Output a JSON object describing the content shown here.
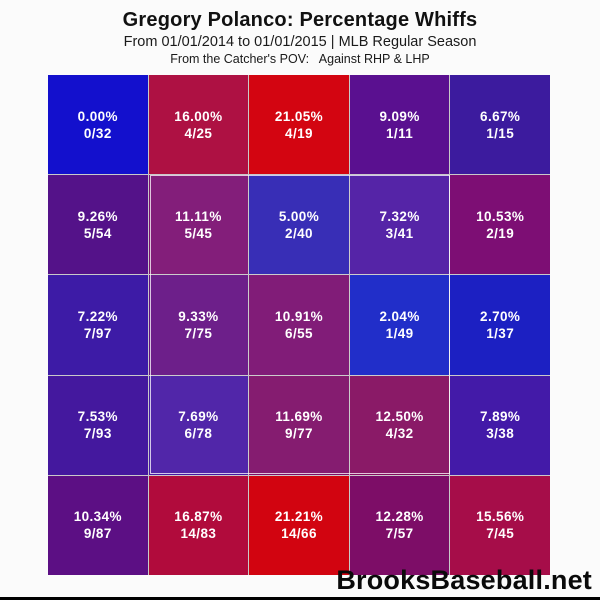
{
  "header": {
    "title": "Gregory Polanco: Percentage Whiffs",
    "subtitle": "From 01/01/2014 to 01/01/2015 | MLB Regular Season",
    "pov_line": "From the Catcher's POV:   Against RHP & LHP"
  },
  "footer": {
    "brand": "BrooksBaseball.net"
  },
  "chart_data": {
    "type": "heatmap",
    "title": "Gregory Polanco: Percentage Whiffs",
    "subtitle": "From 01/01/2014 to 01/01/2015 | MLB Regular Season",
    "pov": "From the Catcher's POV: Against RHP & LHP",
    "metric": "Percentage Whiffs (whiffs/swings)",
    "rows": 5,
    "cols": 5,
    "color_scale": {
      "low": "#1411cb",
      "mid": "#6e107c",
      "high": "#d30511",
      "meaning": "blue = low whiff %, red = high whiff %"
    },
    "strike_zone": {
      "row_start": 2,
      "row_end": 4,
      "col_start": 2,
      "col_end": 4,
      "outline_color": "#ffffff"
    },
    "cells": [
      [
        {
          "pct": "0.00%",
          "frac": "0/32",
          "value": 0.0,
          "whiffs": 0,
          "swings": 32,
          "color": "#1310cd"
        },
        {
          "pct": "16.00%",
          "frac": "4/25",
          "value": 16.0,
          "whiffs": 4,
          "swings": 25,
          "color": "#ae1143"
        },
        {
          "pct": "21.05%",
          "frac": "4/19",
          "value": 21.05,
          "whiffs": 4,
          "swings": 19,
          "color": "#d30511"
        },
        {
          "pct": "9.09%",
          "frac": "1/11",
          "value": 9.09,
          "whiffs": 1,
          "swings": 11,
          "color": "#5a1090"
        },
        {
          "pct": "6.67%",
          "frac": "1/15",
          "value": 6.67,
          "whiffs": 1,
          "swings": 15,
          "color": "#3c1b9e"
        }
      ],
      [
        {
          "pct": "9.26%",
          "frac": "5/54",
          "value": 9.26,
          "whiffs": 5,
          "swings": 54,
          "color": "#541289"
        },
        {
          "pct": "11.11%",
          "frac": "5/45",
          "value": 11.11,
          "whiffs": 5,
          "swings": 45,
          "color": "#7c1072"
        },
        {
          "pct": "5.00%",
          "frac": "2/40",
          "value": 5.0,
          "whiffs": 2,
          "swings": 40,
          "color": "#2c21b2"
        },
        {
          "pct": "7.32%",
          "frac": "3/41",
          "value": 7.32,
          "whiffs": 3,
          "swings": 41,
          "color": "#4b17a2"
        },
        {
          "pct": "10.53%",
          "frac": "2/19",
          "value": 10.53,
          "whiffs": 2,
          "swings": 19,
          "color": "#7d0e74"
        }
      ],
      [
        {
          "pct": "7.22%",
          "frac": "7/97",
          "value": 7.22,
          "whiffs": 7,
          "swings": 97,
          "color": "#3d1ba6"
        },
        {
          "pct": "9.33%",
          "frac": "7/75",
          "value": 9.33,
          "whiffs": 7,
          "swings": 75,
          "color": "#641183"
        },
        {
          "pct": "10.91%",
          "frac": "6/55",
          "value": 10.91,
          "whiffs": 6,
          "swings": 55,
          "color": "#7a0e70"
        },
        {
          "pct": "2.04%",
          "frac": "1/49",
          "value": 2.04,
          "whiffs": 1,
          "swings": 49,
          "color": "#1421c6"
        },
        {
          "pct": "2.70%",
          "frac": "1/37",
          "value": 2.7,
          "whiffs": 1,
          "swings": 37,
          "color": "#1c20c2"
        }
      ],
      [
        {
          "pct": "7.53%",
          "frac": "7/93",
          "value": 7.53,
          "whiffs": 7,
          "swings": 93,
          "color": "#44189e"
        },
        {
          "pct": "7.69%",
          "frac": "6/78",
          "value": 7.69,
          "whiffs": 6,
          "swings": 78,
          "color": "#4719a4"
        },
        {
          "pct": "11.69%",
          "frac": "9/77",
          "value": 11.69,
          "whiffs": 9,
          "swings": 77,
          "color": "#7e0e68"
        },
        {
          "pct": "12.50%",
          "frac": "4/32",
          "value": 12.5,
          "whiffs": 4,
          "swings": 32,
          "color": "#830c5e"
        },
        {
          "pct": "7.89%",
          "frac": "3/38",
          "value": 7.89,
          "whiffs": 3,
          "swings": 38,
          "color": "#431aa8"
        }
      ],
      [
        {
          "pct": "10.34%",
          "frac": "9/87",
          "value": 10.34,
          "whiffs": 9,
          "swings": 87,
          "color": "#5c0f84"
        },
        {
          "pct": "16.87%",
          "frac": "14/83",
          "value": 16.87,
          "whiffs": 14,
          "swings": 83,
          "color": "#b10b3c"
        },
        {
          "pct": "21.21%",
          "frac": "14/66",
          "value": 21.21,
          "whiffs": 14,
          "swings": 66,
          "color": "#d20410"
        },
        {
          "pct": "12.28%",
          "frac": "7/57",
          "value": 12.28,
          "whiffs": 7,
          "swings": 57,
          "color": "#7d0d67"
        },
        {
          "pct": "15.56%",
          "frac": "7/45",
          "value": 15.56,
          "whiffs": 7,
          "swings": 45,
          "color": "#a60d49"
        }
      ]
    ]
  }
}
